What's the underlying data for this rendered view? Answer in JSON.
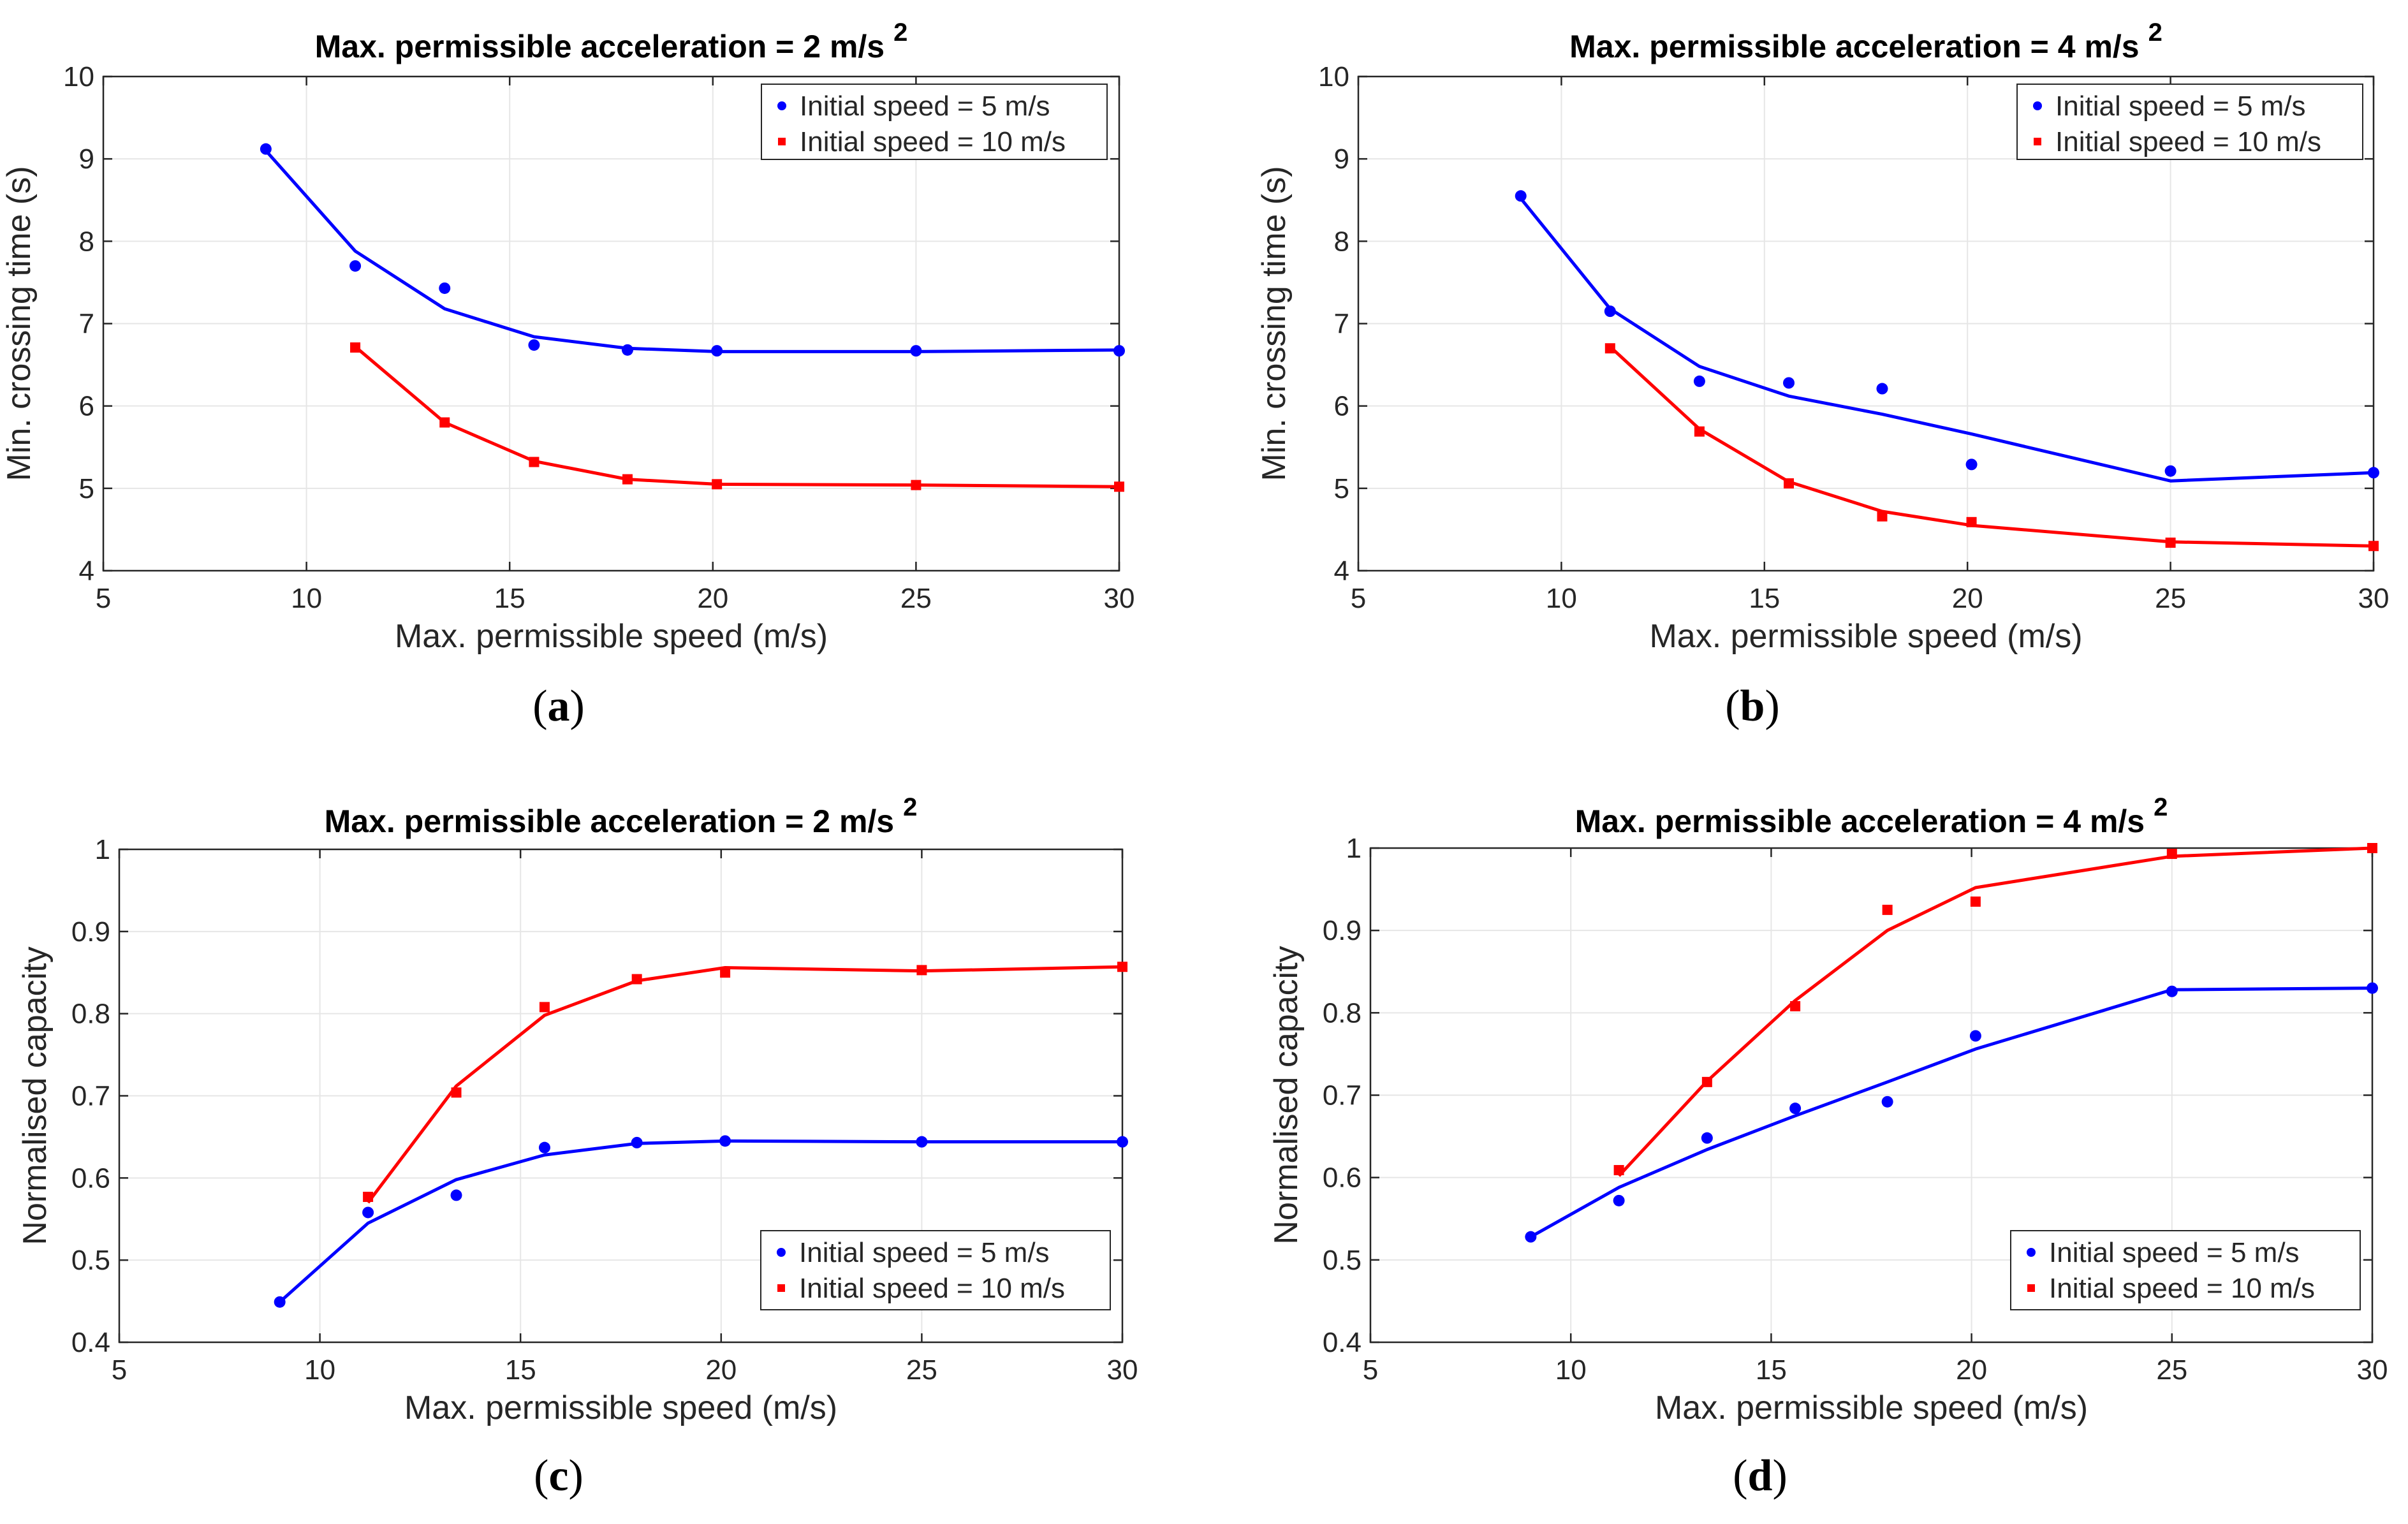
{
  "chart_data": [
    {
      "id": "a",
      "type": "line",
      "panel_label": "a",
      "title": "Max. permissible acceleration = 2 m/s",
      "title_sup": "2",
      "xlabel": "Max. permissible speed (m/s)",
      "ylabel": "Min. crossing time (s)",
      "xlim": [
        5,
        30
      ],
      "ylim": [
        4,
        10
      ],
      "xticks": [
        "5",
        "10",
        "15",
        "20",
        "25",
        "30"
      ],
      "yticks": [
        "4",
        "5",
        "6",
        "7",
        "8",
        "9",
        "10"
      ],
      "grid": true,
      "legend_position": "top-right",
      "series": [
        {
          "name": "Initial speed = 5 m/s",
          "color": "#0000ff",
          "marker": "circle",
          "points": {
            "x": [
              9,
              11.2,
              13.4,
              15.6,
              17.9,
              20.1,
              25,
              30
            ],
            "y": [
              9.12,
              7.7,
              7.43,
              6.74,
              6.68,
              6.67,
              6.67,
              6.67
            ]
          },
          "line": {
            "x": [
              9,
              11.2,
              13.4,
              15.6,
              17.9,
              20.1,
              25,
              30
            ],
            "y": [
              9.1,
              7.88,
              7.18,
              6.84,
              6.7,
              6.66,
              6.66,
              6.68
            ]
          }
        },
        {
          "name": "Initial speed = 10 m/s",
          "color": "#ff0000",
          "marker": "square",
          "points": {
            "x": [
              11.2,
              13.4,
              15.6,
              17.9,
              20.1,
              25,
              30
            ],
            "y": [
              6.71,
              5.8,
              5.32,
              5.11,
              5.05,
              5.04,
              5.02
            ]
          },
          "line": {
            "x": [
              11.2,
              13.4,
              15.6,
              17.9,
              20.1,
              25,
              30
            ],
            "y": [
              6.72,
              5.8,
              5.33,
              5.11,
              5.05,
              5.04,
              5.02
            ]
          }
        }
      ]
    },
    {
      "id": "b",
      "type": "line",
      "panel_label": "b",
      "title": "Max. permissible acceleration = 4 m/s",
      "title_sup": "2",
      "xlabel": "Max. permissible speed (m/s)",
      "ylabel": "Min. crossing time (s)",
      "xlim": [
        5,
        30
      ],
      "ylim": [
        4,
        10
      ],
      "xticks": [
        "5",
        "10",
        "15",
        "20",
        "25",
        "30"
      ],
      "yticks": [
        "4",
        "5",
        "6",
        "7",
        "8",
        "9",
        "10"
      ],
      "grid": true,
      "legend_position": "top-right",
      "series": [
        {
          "name": "Initial speed = 5 m/s",
          "color": "#0000ff",
          "marker": "circle",
          "points": {
            "x": [
              9,
              11.2,
              13.4,
              15.6,
              17.9,
              20.1,
              25,
              30
            ],
            "y": [
              8.55,
              7.15,
              6.3,
              6.28,
              6.21,
              5.29,
              5.21,
              5.19
            ]
          },
          "line": {
            "x": [
              9,
              11.2,
              13.4,
              15.6,
              17.9,
              20.1,
              25,
              30
            ],
            "y": [
              8.52,
              7.18,
              6.48,
              6.12,
              5.9,
              5.66,
              5.09,
              5.19
            ]
          }
        },
        {
          "name": "Initial speed = 10 m/s",
          "color": "#ff0000",
          "marker": "square",
          "points": {
            "x": [
              11.2,
              13.4,
              15.6,
              17.9,
              20.1,
              25,
              30
            ],
            "y": [
              6.7,
              5.69,
              5.06,
              4.66,
              4.59,
              4.34,
              4.3
            ]
          },
          "line": {
            "x": [
              11.2,
              13.4,
              15.6,
              17.9,
              20.1,
              25,
              30
            ],
            "y": [
              6.72,
              5.72,
              5.08,
              4.72,
              4.55,
              4.35,
              4.3
            ]
          }
        }
      ]
    },
    {
      "id": "c",
      "type": "line",
      "panel_label": "c",
      "title": "Max. permissible acceleration = 2 m/s",
      "title_sup": "2",
      "xlabel": "Max. permissible speed (m/s)",
      "ylabel": "Normalised capacity",
      "xlim": [
        5,
        30
      ],
      "ylim": [
        0.4,
        1
      ],
      "xticks": [
        "5",
        "10",
        "15",
        "20",
        "25",
        "30"
      ],
      "yticks": [
        "0.4",
        "0.5",
        "0.6",
        "0.7",
        "0.8",
        "0.9",
        "1"
      ],
      "grid": true,
      "legend_position": "bottom-right",
      "series": [
        {
          "name": "Initial speed = 5 m/s",
          "color": "#0000ff",
          "marker": "circle",
          "points": {
            "x": [
              9,
              11.2,
              13.4,
              15.6,
              17.9,
              20.1,
              25,
              30
            ],
            "y": [
              0.449,
              0.558,
              0.579,
              0.637,
              0.643,
              0.645,
              0.644,
              0.644
            ]
          },
          "line": {
            "x": [
              9,
              11.2,
              13.4,
              15.6,
              17.9,
              20.1,
              25,
              30
            ],
            "y": [
              0.449,
              0.545,
              0.598,
              0.628,
              0.642,
              0.645,
              0.644,
              0.644
            ]
          }
        },
        {
          "name": "Initial speed = 10 m/s",
          "color": "#ff0000",
          "marker": "square",
          "points": {
            "x": [
              11.2,
              13.4,
              15.6,
              17.9,
              20.1,
              25,
              30
            ],
            "y": [
              0.577,
              0.704,
              0.808,
              0.842,
              0.85,
              0.853,
              0.857
            ]
          },
          "line": {
            "x": [
              11.2,
              13.4,
              15.6,
              17.9,
              20.1,
              25,
              30
            ],
            "y": [
              0.57,
              0.712,
              0.798,
              0.84,
              0.856,
              0.852,
              0.857
            ]
          }
        }
      ]
    },
    {
      "id": "d",
      "type": "line",
      "panel_label": "d",
      "title": "Max. permissible acceleration = 4 m/s",
      "title_sup": "2",
      "xlabel": "Max. permissible speed (m/s)",
      "ylabel": "Normalised capacity",
      "xlim": [
        5,
        30
      ],
      "ylim": [
        0.4,
        1
      ],
      "xticks": [
        "5",
        "10",
        "15",
        "20",
        "25",
        "30"
      ],
      "yticks": [
        "0.4",
        "0.5",
        "0.6",
        "0.7",
        "0.8",
        "0.9",
        "1"
      ],
      "grid": true,
      "legend_position": "bottom-right",
      "series": [
        {
          "name": "Initial speed = 5 m/s",
          "color": "#0000ff",
          "marker": "circle",
          "points": {
            "x": [
              9,
              11.2,
              13.4,
              15.6,
              17.9,
              20.1,
              25,
              30
            ],
            "y": [
              0.528,
              0.572,
              0.648,
              0.684,
              0.692,
              0.772,
              0.826,
              0.83
            ]
          },
          "line": {
            "x": [
              9,
              11.2,
              13.4,
              15.6,
              17.9,
              20.1,
              25,
              30
            ],
            "y": [
              0.528,
              0.588,
              0.634,
              0.675,
              0.716,
              0.756,
              0.828,
              0.83
            ]
          }
        },
        {
          "name": "Initial speed = 10 m/s",
          "color": "#ff0000",
          "marker": "square",
          "points": {
            "x": [
              11.2,
              13.4,
              15.6,
              17.9,
              20.1,
              25,
              30
            ],
            "y": [
              0.609,
              0.716,
              0.808,
              0.925,
              0.935,
              0.993,
              1.0
            ]
          },
          "line": {
            "x": [
              11.2,
              13.4,
              15.6,
              17.9,
              20.1,
              25,
              30
            ],
            "y": [
              0.602,
              0.717,
              0.815,
              0.9,
              0.952,
              0.99,
              1.0
            ]
          }
        }
      ]
    }
  ]
}
